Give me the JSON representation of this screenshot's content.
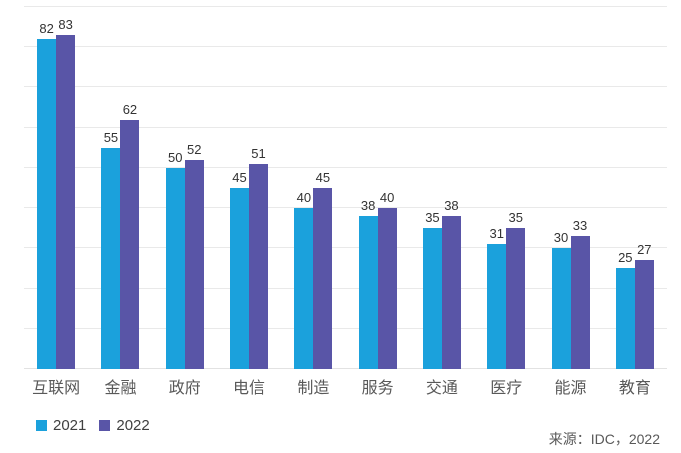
{
  "chart_data": {
    "type": "bar",
    "title": "",
    "xlabel": "",
    "ylabel": "",
    "categories": [
      "互联网",
      "金融",
      "政府",
      "电信",
      "制造",
      "服务",
      "交通",
      "医疗",
      "能源",
      "教育"
    ],
    "series": [
      {
        "name": "2021",
        "color": "#1BA1DC",
        "values": [
          82,
          55,
          50,
          45,
          40,
          38,
          35,
          31,
          30,
          25
        ]
      },
      {
        "name": "2022",
        "color": "#5955A7",
        "values": [
          83,
          62,
          52,
          51,
          45,
          40,
          38,
          35,
          33,
          27
        ]
      }
    ],
    "ylim": [
      0,
      90
    ],
    "grid": true,
    "gridline_step": 10,
    "y_axis_labels_visible": false,
    "data_labels": true,
    "legend_position": "bottom-left"
  },
  "colors": {
    "series_2021": "#1BA1DC",
    "series_2022": "#5955A7",
    "gridline": "#E9E9E9",
    "data_label_text": "#333333",
    "category_label_text": "#595959",
    "source_text": "#595959"
  },
  "source": {
    "label": "来源：IDC，2022"
  }
}
